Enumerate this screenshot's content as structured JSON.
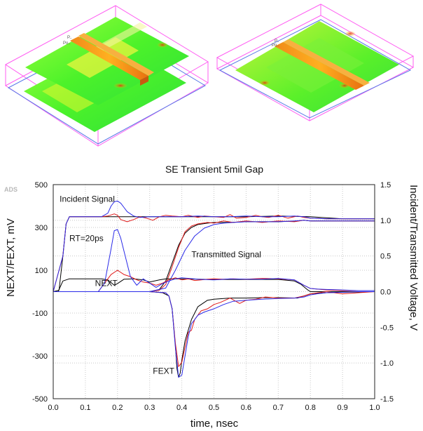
{
  "logo": "ADS",
  "chart_data": {
    "type": "line",
    "title": "SE Transient 5mil Gap",
    "xlabel": "time, nsec",
    "ylabel_left": "NEXT/FEXT, mV",
    "ylabel_right": "Incident/Transmitted Voltage, V",
    "xlim": [
      0.0,
      1.0
    ],
    "ylim_left": [
      -500,
      500
    ],
    "ylim_right": [
      -1.5,
      1.5
    ],
    "x_ticks": [
      "0.0",
      "0.1",
      "0.2",
      "0.3",
      "0.4",
      "0.5",
      "0.6",
      "0.7",
      "0.8",
      "0.9",
      "1.0"
    ],
    "y_ticks_left": [
      "500",
      "300",
      "100",
      "-100",
      "-300",
      "-500"
    ],
    "y_ticks_right": [
      "1.5",
      "1.0",
      "0.5",
      "0.0",
      "-0.5",
      "-1.0",
      "-1.5"
    ],
    "grid": true,
    "annotations": [
      {
        "text": "Incident Signal",
        "x": 0.02,
        "y": 1.26,
        "axis": "right"
      },
      {
        "text": "RT=20ps",
        "x": 0.05,
        "y": 0.71,
        "axis": "right"
      },
      {
        "text": "Transmitted Signal",
        "x": 0.43,
        "y": 0.48,
        "axis": "right"
      },
      {
        "text": "NEXT",
        "x": 0.13,
        "y": 0.08,
        "axis": "right"
      },
      {
        "text": "FEXT",
        "x": 0.31,
        "y": -1.15,
        "axis": "right"
      }
    ],
    "series": [
      {
        "name": "Incident black",
        "axis": "right",
        "color": "#000000",
        "x": [
          0,
          0.018,
          0.03,
          0.04,
          0.05,
          0.06,
          0.1,
          0.2,
          0.3,
          0.4,
          0.5,
          0.6,
          0.7,
          0.8,
          0.9,
          1.0
        ],
        "y": [
          0,
          0.02,
          0.5,
          0.95,
          1.05,
          1.05,
          1.05,
          1.05,
          1.05,
          1.05,
          1.05,
          1.05,
          1.06,
          1.05,
          1.02,
          1.02
        ]
      },
      {
        "name": "Incident red",
        "axis": "right",
        "color": "#e01a1a",
        "x": [
          0,
          0.03,
          0.04,
          0.05,
          0.1,
          0.15,
          0.17,
          0.19,
          0.2,
          0.21,
          0.23,
          0.25,
          0.27,
          0.29,
          0.31,
          0.33,
          0.35,
          0.37,
          0.4,
          0.42,
          0.45,
          0.47,
          0.5,
          0.53,
          0.55,
          0.57,
          0.6,
          0.63,
          0.65,
          0.67,
          0.7,
          0.73,
          0.76,
          0.78,
          0.8,
          0.85,
          0.9,
          1.0
        ],
        "y": [
          0,
          0.5,
          0.95,
          1.05,
          1.05,
          1.05,
          1.06,
          1.09,
          1.07,
          1.01,
          0.98,
          1.01,
          1.05,
          1.03,
          1.0,
          1.05,
          1.07,
          1.06,
          1.05,
          1.07,
          1.04,
          1.06,
          1.05,
          1.04,
          1.08,
          1.03,
          1.04,
          1.07,
          1.05,
          1.04,
          1.07,
          1.03,
          1.06,
          1.04,
          1.03,
          1.02,
          1.02,
          1.02
        ]
      },
      {
        "name": "Incident blue",
        "axis": "right",
        "color": "#2a2ae8",
        "x": [
          0,
          0.03,
          0.04,
          0.05,
          0.1,
          0.15,
          0.17,
          0.18,
          0.19,
          0.2,
          0.21,
          0.22,
          0.23,
          0.25,
          0.27,
          0.3,
          0.35,
          0.4,
          0.45,
          0.5,
          0.55,
          0.6,
          0.65,
          0.7,
          0.75,
          0.78,
          0.8,
          0.85,
          0.9,
          1.0
        ],
        "y": [
          0,
          0.5,
          0.95,
          1.05,
          1.05,
          1.05,
          1.1,
          1.2,
          1.26,
          1.27,
          1.24,
          1.18,
          1.12,
          1.06,
          1.04,
          1.05,
          1.05,
          1.05,
          1.06,
          1.05,
          1.05,
          1.06,
          1.05,
          1.05,
          1.06,
          1.05,
          1.03,
          1.02,
          1.02,
          1.02
        ]
      },
      {
        "name": "Transmitted black",
        "axis": "right",
        "color": "#000000",
        "x": [
          0,
          0.3,
          0.33,
          0.35,
          0.37,
          0.39,
          0.41,
          0.43,
          0.45,
          0.48,
          0.5,
          0.55,
          0.6,
          0.7,
          0.76,
          0.78,
          0.8,
          0.85,
          0.9,
          1.0
        ],
        "y": [
          0,
          0,
          0.03,
          0.15,
          0.4,
          0.65,
          0.82,
          0.9,
          0.94,
          0.96,
          0.97,
          0.97,
          0.98,
          0.98,
          0.99,
          1.0,
          0.99,
          0.99,
          0.99,
          0.99
        ]
      },
      {
        "name": "Transmitted red",
        "axis": "right",
        "color": "#e01a1a",
        "x": [
          0,
          0.3,
          0.33,
          0.35,
          0.37,
          0.39,
          0.41,
          0.43,
          0.45,
          0.48,
          0.5,
          0.53,
          0.56,
          0.6,
          0.65,
          0.7,
          0.75,
          0.78,
          0.8,
          0.85,
          0.9,
          1.0
        ],
        "y": [
          0,
          0,
          0.02,
          0.1,
          0.35,
          0.62,
          0.84,
          0.92,
          0.95,
          0.97,
          0.96,
          0.99,
          0.97,
          0.99,
          0.97,
          0.99,
          0.98,
          1.0,
          0.99,
          0.99,
          0.99,
          0.99
        ]
      },
      {
        "name": "Transmitted blue",
        "axis": "right",
        "color": "#2a2ae8",
        "x": [
          0,
          0.3,
          0.35,
          0.38,
          0.41,
          0.44,
          0.47,
          0.5,
          0.53,
          0.56,
          0.6,
          0.65,
          0.7,
          0.75,
          0.78,
          0.8,
          0.85,
          0.9,
          1.0
        ],
        "y": [
          0,
          0,
          0.05,
          0.3,
          0.58,
          0.78,
          0.89,
          0.94,
          0.96,
          0.97,
          0.98,
          0.98,
          0.98,
          0.99,
          1.0,
          0.99,
          0.99,
          0.99,
          0.99
        ]
      },
      {
        "name": "NEXT black",
        "axis": "left",
        "color": "#000000",
        "x": [
          0,
          0.015,
          0.03,
          0.05,
          0.1,
          0.15,
          0.17,
          0.19,
          0.2,
          0.22,
          0.25,
          0.28,
          0.3,
          0.33,
          0.35,
          0.38,
          0.4,
          0.45,
          0.5,
          0.55,
          0.6,
          0.7,
          0.75,
          0.77,
          0.79,
          0.8,
          0.85,
          0.9,
          0.95,
          1.0
        ],
        "y": [
          0,
          0,
          50,
          60,
          60,
          60,
          55,
          30,
          38,
          58,
          60,
          55,
          45,
          55,
          60,
          60,
          60,
          58,
          57,
          57,
          57,
          57,
          50,
          35,
          10,
          0,
          0,
          0,
          0,
          0
        ]
      },
      {
        "name": "NEXT red",
        "axis": "left",
        "color": "#e01a1a",
        "x": [
          0,
          0.14,
          0.16,
          0.18,
          0.2,
          0.22,
          0.24,
          0.26,
          0.28,
          0.3,
          0.32,
          0.34,
          0.36,
          0.38,
          0.4,
          0.42,
          0.44,
          0.46,
          0.48,
          0.5,
          0.53,
          0.56,
          0.6,
          0.65,
          0.7,
          0.75,
          0.78,
          0.8,
          0.85,
          0.9,
          0.95,
          1.0
        ],
        "y": [
          0,
          0,
          40,
          80,
          100,
          80,
          70,
          55,
          45,
          40,
          30,
          40,
          55,
          65,
          55,
          60,
          52,
          55,
          58,
          60,
          58,
          60,
          58,
          62,
          60,
          55,
          30,
          15,
          8,
          5,
          5,
          5
        ]
      },
      {
        "name": "NEXT blue",
        "axis": "left",
        "color": "#2a2ae8",
        "x": [
          0,
          0.14,
          0.16,
          0.18,
          0.19,
          0.2,
          0.21,
          0.22,
          0.24,
          0.26,
          0.28,
          0.3,
          0.32,
          0.34,
          0.36,
          0.38,
          0.4,
          0.45,
          0.5,
          0.55,
          0.6,
          0.65,
          0.7,
          0.75,
          0.78,
          0.8,
          0.82,
          0.85,
          0.9,
          0.95,
          1.0
        ],
        "y": [
          0,
          0,
          40,
          200,
          285,
          290,
          250,
          190,
          70,
          30,
          60,
          40,
          20,
          38,
          50,
          60,
          65,
          58,
          55,
          60,
          58,
          58,
          62,
          55,
          30,
          15,
          12,
          10,
          8,
          5,
          5
        ]
      },
      {
        "name": "FEXT black",
        "axis": "left",
        "color": "#000000",
        "x": [
          0,
          0.3,
          0.34,
          0.36,
          0.37,
          0.38,
          0.385,
          0.39,
          0.395,
          0.4,
          0.41,
          0.43,
          0.45,
          0.48,
          0.5,
          0.55,
          0.6,
          0.65,
          0.7,
          0.76,
          0.78,
          0.8,
          0.85,
          0.9,
          1.0
        ],
        "y": [
          0,
          0,
          -5,
          -20,
          -80,
          -250,
          -360,
          -400,
          -380,
          -320,
          -230,
          -130,
          -70,
          -40,
          -35,
          -30,
          -30,
          -28,
          -28,
          -30,
          -20,
          -10,
          -5,
          -3,
          0
        ]
      },
      {
        "name": "FEXT red",
        "axis": "left",
        "color": "#e01a1a",
        "x": [
          0,
          0.3,
          0.35,
          0.36,
          0.37,
          0.38,
          0.39,
          0.4,
          0.41,
          0.42,
          0.43,
          0.44,
          0.46,
          0.48,
          0.5,
          0.52,
          0.55,
          0.58,
          0.6,
          0.63,
          0.66,
          0.7,
          0.75,
          0.78,
          0.8,
          0.85,
          0.9,
          0.95,
          1.0
        ],
        "y": [
          0,
          0,
          -5,
          -20,
          -80,
          -240,
          -350,
          -330,
          -260,
          -190,
          -180,
          -130,
          -90,
          -80,
          -60,
          -50,
          -30,
          -55,
          -40,
          -35,
          -25,
          -30,
          -30,
          -20,
          -10,
          0,
          -10,
          -5,
          0
        ]
      },
      {
        "name": "FEXT blue",
        "axis": "left",
        "color": "#2a2ae8",
        "x": [
          0,
          0.3,
          0.35,
          0.36,
          0.37,
          0.38,
          0.39,
          0.4,
          0.41,
          0.42,
          0.43,
          0.45,
          0.47,
          0.5,
          0.53,
          0.56,
          0.6,
          0.65,
          0.7,
          0.75,
          0.78,
          0.8,
          0.82,
          0.85,
          0.9,
          0.95,
          1.0
        ],
        "y": [
          0,
          0,
          -5,
          -20,
          -80,
          -260,
          -400,
          -390,
          -300,
          -210,
          -150,
          -110,
          -95,
          -80,
          -60,
          -45,
          -40,
          -35,
          -32,
          -30,
          -25,
          -15,
          -10,
          -5,
          -3,
          0,
          0
        ]
      }
    ]
  },
  "views": [
    {
      "name": "3d-view-left"
    },
    {
      "name": "3d-view-right"
    }
  ]
}
